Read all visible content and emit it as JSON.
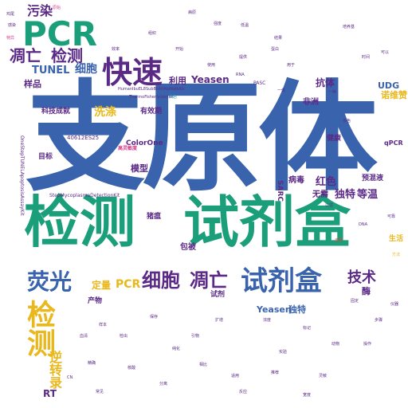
{
  "words": {
    "w01": "支原体",
    "w02": "检测",
    "w03": "试剂盒",
    "w04": "PCR",
    "w05": "快速",
    "w06": "凋亡",
    "w07": "检测",
    "w08": "荧光",
    "w09": "细胞",
    "w10": "凋亡",
    "w11": "试剂盒",
    "w12": "检测",
    "w13": "技术",
    "w14": "TUNEL",
    "w15": "细胞",
    "w16": "污染",
    "w17": "定量",
    "w18": "PCR",
    "w19": "逆转录",
    "w20": "样品",
    "w21": "利用",
    "w22": "Yeasen",
    "w23": "抗体",
    "w24": "非洲",
    "w25": "红色",
    "w26": "无需",
    "w27": "独特",
    "w28": "等温",
    "w29": "包被",
    "w30": "模型",
    "w31": "Yeasen",
    "w32": "独特",
    "w33": "酶",
    "w34": "健康",
    "w35": "UDG",
    "w36": "诺维赞",
    "w37": "qPCR",
    "w38": "RT",
    "w39": "产物",
    "w40": "猪瘟",
    "w41": "预混液",
    "w42": "生活",
    "w43": "洗涤",
    "w44": "科技成就",
    "w45": "ColorOne",
    "w46": "有效期",
    "w47": "高灵敏度",
    "w48": "目标",
    "w49": "SARC",
    "w50": "病毒",
    "w51": "StepMycoplasmaDetectionKit",
    "w52": "OneStepTUNELApoptosisAssayKit",
    "w53": "40612ES25",
    "w54": "ThermoFisherScientific",
    "w55": "HumanIbuEL8SubBilAlfAbiNdibKit",
    "w56": "PASC",
    "w57": "方法",
    "w58": "以往",
    "w59": "提供",
    "w60": "去除",
    "w61": "强度",
    "w62": "染色",
    "w63": "试剂",
    "w64": "结果",
    "w65": "一体",
    "w66": "引物",
    "w67": "培养基",
    "w68": "原始",
    "w69": "核酸",
    "w70": "使用",
    "w71": "可以",
    "w72": "特异",
    "w73": "血清",
    "w74": "DNA",
    "w75": "RNA",
    "w76": "灵敏",
    "w77": "常见",
    "w78": "实验",
    "w79": "分离",
    "w80": "步骤",
    "w81": "适用",
    "w82": "检出",
    "w83": "标记",
    "w84": "固定",
    "w85": "蛋白",
    "w86": "一种",
    "w87": "鸡尾",
    "w88": "感染",
    "w89": "病原",
    "w90": "反应",
    "w91": "相比",
    "w92": "推荐",
    "w93": "CN",
    "w94": "动物",
    "w95": "样本",
    "w96": "保存",
    "w97": "操作",
    "w98": "仪器",
    "w99": "宽度",
    "w100": "纯化",
    "w101": "用于",
    "w102": "多色",
    "w103": "可靠",
    "w104": "低温",
    "w105": "组织",
    "w106": "效率",
    "w107": "开始",
    "w108": "时间",
    "w109": "浓度",
    "w110": "扩增",
    "w111": "精确"
  },
  "colors": {
    "blue": "#3a63ad",
    "green": "#1a9f7a",
    "purple": "#5b2a86",
    "yellow": "#e9b81c",
    "pink": "#d93a8a",
    "red": "#e0413a",
    "teal": "#2ba3b8",
    "background": "#ffffff"
  }
}
